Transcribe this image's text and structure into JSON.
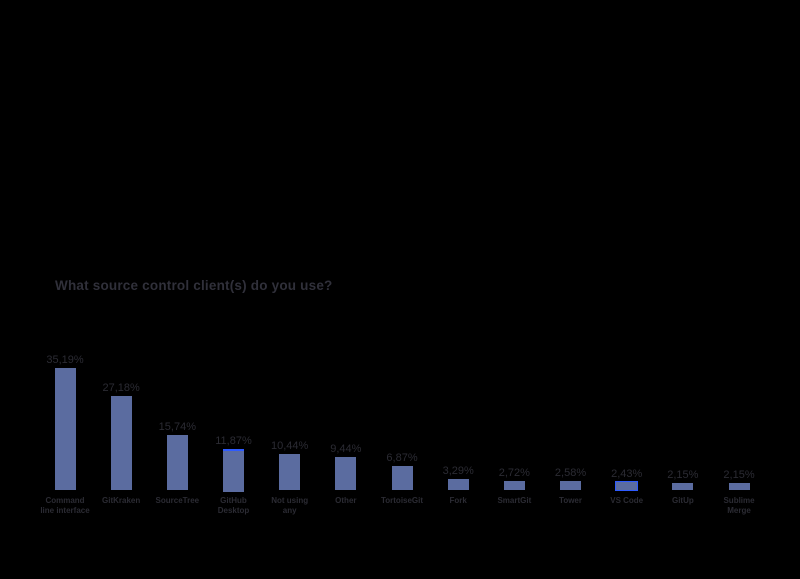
{
  "chart_data": {
    "type": "bar",
    "title": "What source control client(s) do you use?",
    "categories": [
      "Command line interface",
      "GitKraken",
      "SourceTree",
      "GitHub Desktop",
      "Not using any",
      "Other",
      "TortoiseGit",
      "Fork",
      "SmartGit",
      "Tower",
      "VS Code",
      "GitUp",
      "Sublime Merge"
    ],
    "values": [
      35.19,
      27.18,
      15.74,
      11.87,
      10.44,
      9.44,
      6.87,
      3.29,
      2.72,
      2.58,
      2.43,
      2.15,
      2.15
    ],
    "value_labels": [
      "35,19%",
      "27,18%",
      "15,74%",
      "11,87%",
      "10,44%",
      "9,44%",
      "6,87%",
      "3,29%",
      "2,72%",
      "2,58%",
      "2,43%",
      "2,15%",
      "2,15%"
    ],
    "xlabel": "",
    "ylabel": "",
    "ylim": [
      0,
      38
    ],
    "grid": false,
    "legend": "none",
    "axis_line": false,
    "bar_color": "#5b6ca0",
    "text_color": "#2b2b33",
    "title_color": "#30303a",
    "background_color": "#000000",
    "highlight_color": "#2e5bff",
    "highlights": [
      "none",
      "none",
      "none",
      "top",
      "none",
      "none",
      "none",
      "none",
      "none",
      "none",
      "outline",
      "none",
      "none"
    ]
  }
}
